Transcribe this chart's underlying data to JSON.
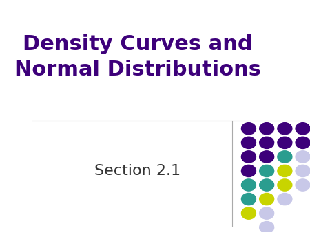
{
  "title_line1": "Density Curves and",
  "title_line2": "Normal Distributions",
  "subtitle": "Section 2.1",
  "title_color": "#3d007a",
  "subtitle_color": "#333333",
  "background_color": "#ffffff",
  "divider_color": "#aaaaaa",
  "vertical_line_color": "#aaaaaa",
  "title_fontsize": 22,
  "subtitle_fontsize": 16,
  "dot_grid": {
    "cols": 4,
    "rows": 8,
    "colors": [
      [
        "#3d007a",
        "#3d007a",
        "#3d007a",
        "#3d007a"
      ],
      [
        "#3d007a",
        "#3d007a",
        "#3d007a",
        "#3d007a"
      ],
      [
        "#3d007a",
        "#3d007a",
        "#2a9d8f",
        "#c8c8e8"
      ],
      [
        "#3d007a",
        "#2a9d8f",
        "#c8d400",
        "#c8c8e8"
      ],
      [
        "#2a9d8f",
        "#2a9d8f",
        "#c8d400",
        "#c8c8e8"
      ],
      [
        "#2a9d8f",
        "#c8d400",
        "#c8c8e8",
        "#ffffff"
      ],
      [
        "#c8d400",
        "#c8c8e8",
        "#ffffff",
        "#ffffff"
      ],
      [
        "#ffffff",
        "#c8c8e8",
        "#ffffff",
        "#ffffff"
      ]
    ]
  }
}
